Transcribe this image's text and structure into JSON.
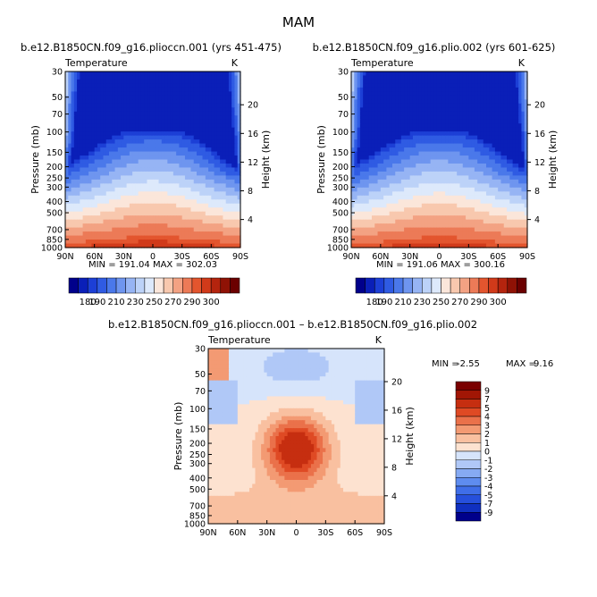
{
  "title": "MAM",
  "colors": {
    "scale1": [
      "#00008b",
      "#0a1fb8",
      "#1c3fd6",
      "#2f5be3",
      "#4a78ea",
      "#6e95ef",
      "#96b4f4",
      "#bcd2f8",
      "#dde9fb",
      "#fbe6da",
      "#f8c8ae",
      "#f3a283",
      "#ec7a57",
      "#e3552e",
      "#d13a1a",
      "#b4240e",
      "#8f1205",
      "#6b0000"
    ],
    "scale_diff": [
      "#00008b",
      "#1030c0",
      "#2650dc",
      "#3f6ee8",
      "#5e8cef",
      "#86aaf3",
      "#b0c8f7",
      "#d6e4fb",
      "#fde2d0",
      "#f9c0a0",
      "#f39a73",
      "#ea714a",
      "#df4a24",
      "#c62e10",
      "#a11605",
      "#7a0000"
    ]
  },
  "chart_data": [
    {
      "type": "heatmap",
      "name": "panel-left",
      "title": "b.e12.B1850CN.f09_g16.plioccn.001 (yrs 451-475)",
      "subtitle_left": "Temperature",
      "subtitle_right": "K",
      "xlabel": "",
      "ylabel": "Pressure (mb)",
      "ylabel_right": "Height (km)",
      "x_ticks": [
        "90N",
        "60N",
        "30N",
        "0",
        "30S",
        "60S",
        "90S"
      ],
      "y_ticks": [
        "30",
        "50",
        "70",
        "100",
        "150",
        "200",
        "250",
        "300",
        "400",
        "500",
        "700",
        "850",
        "1000"
      ],
      "height_ticks": [
        "4",
        "8",
        "12",
        "16",
        "20"
      ],
      "min_max": "MIN = 191.04   MAX = 302.03",
      "min": 191.04,
      "max": 302.03,
      "colorbar_labels": [
        "180",
        "190",
        "210",
        "230",
        "250",
        "270",
        "290",
        "300"
      ],
      "levels": [
        180,
        185,
        190,
        200,
        210,
        220,
        230,
        240,
        250,
        260,
        270,
        280,
        290,
        295,
        300
      ]
    },
    {
      "type": "heatmap",
      "name": "panel-right",
      "title": "b.e12.B1850CN.f09_g16.plio.002 (yrs 601-625)",
      "subtitle_left": "Temperature",
      "subtitle_right": "K",
      "xlabel": "",
      "ylabel": "Pressure (mb)",
      "ylabel_right": "Height (km)",
      "x_ticks": [
        "90N",
        "60N",
        "30N",
        "0",
        "30S",
        "60S",
        "90S"
      ],
      "y_ticks": [
        "30",
        "50",
        "70",
        "100",
        "150",
        "200",
        "250",
        "300",
        "400",
        "500",
        "700",
        "850",
        "1000"
      ],
      "height_ticks": [
        "4",
        "8",
        "12",
        "16",
        "20"
      ],
      "min_max": "MIN = 191.06   MAX = 300.16",
      "min": 191.06,
      "max": 300.16,
      "colorbar_labels": [
        "180",
        "190",
        "210",
        "230",
        "250",
        "270",
        "290",
        "300"
      ],
      "levels": [
        180,
        185,
        190,
        200,
        210,
        220,
        230,
        240,
        250,
        260,
        270,
        280,
        290,
        295,
        300
      ]
    },
    {
      "type": "heatmap",
      "name": "panel-diff",
      "title": "b.e12.B1850CN.f09_g16.plioccn.001 – b.e12.B1850CN.f09_g16.plio.002",
      "subtitle_left": "Temperature",
      "subtitle_right": "K",
      "xlabel": "",
      "ylabel": "Pressure (mb)",
      "ylabel_right": "Height (km)",
      "x_ticks": [
        "90N",
        "60N",
        "30N",
        "0",
        "30S",
        "60S",
        "90S"
      ],
      "y_ticks": [
        "30",
        "50",
        "70",
        "100",
        "150",
        "200",
        "250",
        "300",
        "400",
        "500",
        "700",
        "850",
        "1000"
      ],
      "height_ticks": [
        "4",
        "8",
        "12",
        "16",
        "20"
      ],
      "min_label": "MIN = ",
      "min_value": "-2.55",
      "max_label": "MAX = ",
      "max_value": "9.16",
      "min": -2.55,
      "max": 9.16,
      "colorbar_labels": [
        "9",
        "7",
        "5",
        "4",
        "3",
        "2",
        "1",
        "0",
        "-1",
        "-2",
        "-3",
        "-4",
        "-5",
        "-7",
        "-9"
      ]
    }
  ]
}
